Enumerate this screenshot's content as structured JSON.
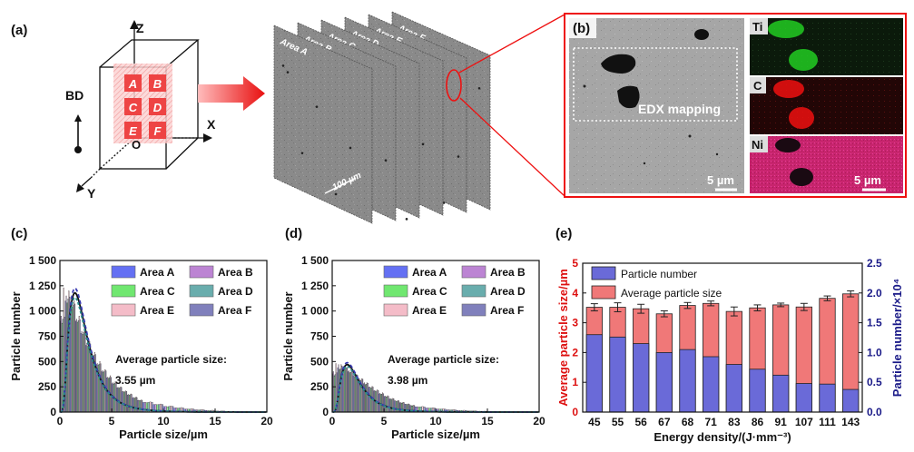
{
  "panel_labels": {
    "a": "(a)",
    "b": "(b)",
    "c": "(c)",
    "d": "(d)",
    "e": "(e)"
  },
  "panel_a": {
    "axes": {
      "z": "Z",
      "x": "X",
      "y": "Y",
      "origin": "O",
      "bd": "BD"
    },
    "cube_areas": [
      "A",
      "B",
      "C",
      "D",
      "E",
      "F"
    ],
    "slices": [
      "Area A",
      "Area B",
      "Area C",
      "Area D",
      "Area E",
      "Area F"
    ],
    "scale": "100 µm"
  },
  "panel_b": {
    "edx_label": "EDX mapping",
    "scale_main": "5 µm",
    "scale_map": "5 µm",
    "maps": [
      {
        "element": "Ti",
        "color": "#22cc22"
      },
      {
        "element": "C",
        "color": "#ee1111"
      },
      {
        "element": "Ni",
        "color": "#ee2288"
      }
    ]
  },
  "colors": {
    "area_a": "#2233ee",
    "area_b": "#a050c0",
    "area_c": "#33dd33",
    "area_d": "#2a8a8a",
    "area_e": "#f0a0b0",
    "area_f": "#4a4aa0",
    "bar_blue": "#6a6ad8",
    "bar_red": "#f07878",
    "red_axis": "#dd1111",
    "blue_axis": "#1a1a88"
  },
  "chart_data": [
    {
      "type": "bar",
      "title": "(c)",
      "xlabel": "Particle size/µm",
      "ylabel": "Particle number",
      "xlim": [
        0,
        20
      ],
      "ylim": [
        0,
        1500
      ],
      "xticks": [
        "0",
        "5",
        "10",
        "15",
        "20"
      ],
      "yticks": [
        "0",
        "250",
        "500",
        "750",
        "1 000",
        "1 250",
        "1 500"
      ],
      "annotation": "Average particle size:",
      "annotation_value": "3.55 µm",
      "legend": [
        "Area A",
        "Area B",
        "Area C",
        "Area D",
        "Area E",
        "Area F"
      ],
      "bin_centers": [
        0.25,
        0.75,
        1.25,
        1.75,
        2.25,
        2.75,
        3.25,
        3.75,
        4.25,
        4.75,
        5.25,
        5.75,
        6.25,
        6.75,
        7.25,
        7.75,
        8.5,
        9.5,
        10.5,
        11.5,
        12.5,
        13.5,
        14.5,
        15.5,
        16.5,
        17.5
      ],
      "series": [
        {
          "name": "Area A",
          "values": [
            900,
            1100,
            1050,
            900,
            780,
            660,
            560,
            470,
            400,
            340,
            280,
            240,
            200,
            170,
            140,
            115,
            95,
            75,
            55,
            40,
            30,
            22,
            15,
            10,
            6,
            4
          ]
        },
        {
          "name": "Area B",
          "values": [
            950,
            1150,
            1080,
            920,
            800,
            680,
            575,
            480,
            410,
            345,
            290,
            245,
            205,
            175,
            145,
            118,
            97,
            77,
            57,
            42,
            31,
            23,
            16,
            11,
            7,
            5
          ]
        },
        {
          "name": "Area C",
          "values": [
            880,
            1080,
            1040,
            890,
            770,
            650,
            555,
            465,
            395,
            335,
            278,
            238,
            198,
            168,
            138,
            112,
            93,
            73,
            53,
            39,
            29,
            21,
            14,
            9,
            6,
            4
          ]
        },
        {
          "name": "Area D",
          "values": [
            920,
            1120,
            1060,
            905,
            790,
            670,
            565,
            475,
            405,
            342,
            285,
            242,
            202,
            172,
            142,
            116,
            96,
            76,
            56,
            41,
            30,
            22,
            15,
            10,
            6,
            4
          ]
        },
        {
          "name": "Area E",
          "values": [
            1230,
            1200,
            1100,
            950,
            820,
            700,
            590,
            500,
            420,
            360,
            300,
            250,
            210,
            180,
            150,
            120,
            100,
            80,
            60,
            45,
            34,
            25,
            18,
            12,
            8,
            5
          ]
        },
        {
          "name": "Area F",
          "values": [
            940,
            1140,
            1070,
            915,
            795,
            675,
            570,
            478,
            408,
            344,
            288,
            244,
            204,
            174,
            144,
            117,
            96,
            76,
            56,
            41,
            30,
            22,
            15,
            10,
            6,
            4
          ]
        }
      ],
      "fit_peak_x": 1.5,
      "fit_peak_y": 1180
    },
    {
      "type": "bar",
      "title": "(d)",
      "xlabel": "Particle size/µm",
      "ylabel": "Particle number",
      "xlim": [
        0,
        20
      ],
      "ylim": [
        0,
        1500
      ],
      "xticks": [
        "0",
        "5",
        "10",
        "15",
        "20"
      ],
      "yticks": [
        "0",
        "250",
        "500",
        "750",
        "1 000",
        "1 250",
        "1 500"
      ],
      "annotation": "Average particle size:",
      "annotation_value": "3.98 µm",
      "legend": [
        "Area A",
        "Area B",
        "Area C",
        "Area D",
        "Area E",
        "Area F"
      ],
      "bin_centers": [
        0.25,
        0.75,
        1.25,
        1.75,
        2.25,
        2.75,
        3.25,
        3.75,
        4.25,
        4.75,
        5.25,
        5.75,
        6.25,
        6.75,
        7.25,
        7.75,
        8.5,
        9.5,
        10.5,
        11.5,
        12.5,
        13.5,
        14.5,
        15.5,
        16.5,
        17.5
      ],
      "series": [
        {
          "name": "Area A",
          "values": [
            380,
            440,
            430,
            400,
            360,
            320,
            280,
            245,
            210,
            180,
            155,
            130,
            110,
            92,
            78,
            65,
            52,
            40,
            30,
            22,
            16,
            12,
            8,
            6,
            4,
            3
          ]
        },
        {
          "name": "Area B",
          "values": [
            400,
            470,
            450,
            410,
            370,
            330,
            290,
            250,
            215,
            185,
            158,
            133,
            112,
            94,
            80,
            66,
            53,
            41,
            31,
            23,
            17,
            12,
            9,
            6,
            4,
            3
          ]
        },
        {
          "name": "Area C",
          "values": [
            360,
            420,
            415,
            390,
            350,
            310,
            272,
            238,
            205,
            176,
            150,
            127,
            107,
            90,
            76,
            63,
            50,
            39,
            29,
            21,
            15,
            11,
            8,
            5,
            4,
            2
          ]
        },
        {
          "name": "Area D",
          "values": [
            370,
            430,
            425,
            395,
            355,
            315,
            276,
            242,
            208,
            178,
            153,
            128,
            108,
            91,
            77,
            64,
            51,
            40,
            30,
            22,
            16,
            12,
            8,
            6,
            4,
            3
          ]
        },
        {
          "name": "Area E",
          "values": [
            480,
            470,
            440,
            410,
            370,
            330,
            290,
            255,
            220,
            190,
            162,
            136,
            115,
            96,
            82,
            68,
            55,
            42,
            32,
            24,
            18,
            13,
            9,
            6,
            4,
            3
          ]
        },
        {
          "name": "Area F",
          "values": [
            390,
            455,
            440,
            405,
            365,
            325,
            285,
            248,
            212,
            182,
            156,
            131,
            111,
            93,
            79,
            65,
            52,
            40,
            30,
            22,
            16,
            12,
            8,
            6,
            4,
            3
          ]
        }
      ],
      "fit_peak_x": 1.5,
      "fit_peak_y": 470
    },
    {
      "type": "bar",
      "title": "(e)",
      "xlabel": "Energy density/(J·mm⁻³)",
      "ylabel": "Average particle size/µm",
      "y2label": "Particle number/×10⁴",
      "categories": [
        "45",
        "55",
        "56",
        "67",
        "68",
        "71",
        "83",
        "86",
        "91",
        "107",
        "111",
        "143"
      ],
      "ylim": [
        0,
        5
      ],
      "y2lim": [
        0,
        2.5
      ],
      "yticks": [
        "0",
        "1",
        "2",
        "3",
        "4",
        "5"
      ],
      "y2ticks": [
        "0.0",
        "0.5",
        "1.0",
        "1.5",
        "2.0",
        "2.5"
      ],
      "legend": [
        "Particle number",
        "Average particle size"
      ],
      "series": [
        {
          "name": "Average particle size",
          "axis": "left",
          "values": [
            3.52,
            3.52,
            3.47,
            3.3,
            3.58,
            3.65,
            3.38,
            3.5,
            3.6,
            3.53,
            3.82,
            3.97
          ],
          "errors": [
            0.12,
            0.15,
            0.15,
            0.1,
            0.1,
            0.08,
            0.15,
            0.1,
            0.06,
            0.12,
            0.08,
            0.1
          ]
        },
        {
          "name": "Particle number",
          "axis": "right",
          "values": [
            1.3,
            1.26,
            1.15,
            1.0,
            1.05,
            0.93,
            0.8,
            0.72,
            0.62,
            0.48,
            0.47,
            0.38
          ]
        }
      ]
    }
  ]
}
